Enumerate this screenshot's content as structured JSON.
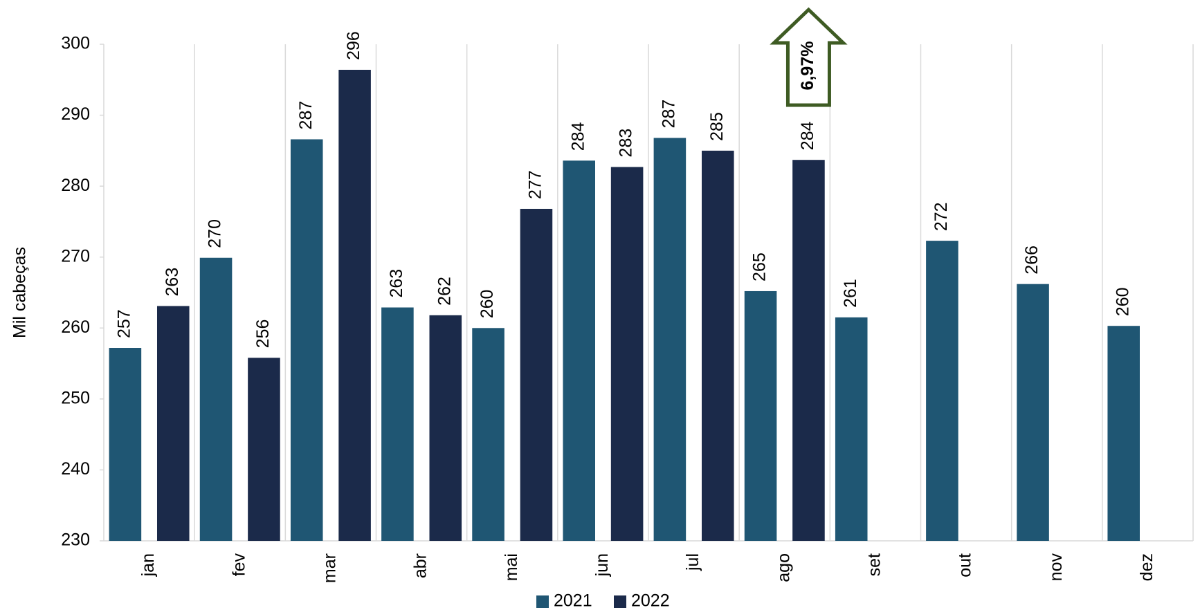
{
  "chart_data": {
    "type": "bar",
    "y_label": "Mil cabeças",
    "categories": [
      "jan",
      "fev",
      "mar",
      "abr",
      "mai",
      "jun",
      "jul",
      "ago",
      "set",
      "out",
      "nov",
      "dez"
    ],
    "series": [
      {
        "name": "2021",
        "color": "#1f5673",
        "values": [
          257.2,
          269.9,
          286.6,
          262.9,
          260.0,
          283.6,
          286.8,
          265.2,
          261.5,
          272.3,
          266.2,
          260.3
        ],
        "value_labels": [
          "257",
          "270",
          "287",
          "263",
          "260",
          "284",
          "287",
          "265",
          "261",
          "272",
          "266",
          "260"
        ]
      },
      {
        "name": "2022",
        "color": "#1b2a4a",
        "values": [
          263.1,
          255.8,
          296.4,
          261.8,
          276.8,
          282.7,
          285.0,
          283.7,
          null,
          null,
          null,
          null
        ],
        "value_labels": [
          "263",
          "256",
          "296",
          "262",
          "277",
          "283",
          "285",
          "284",
          null,
          null,
          null,
          null
        ]
      }
    ],
    "ylim": [
      230,
      300
    ],
    "yticks": [
      230,
      240,
      250,
      260,
      270,
      280,
      290,
      300
    ],
    "annotation": "6,97%",
    "annotation_color": "#3e5b23",
    "legend": "bottom"
  }
}
